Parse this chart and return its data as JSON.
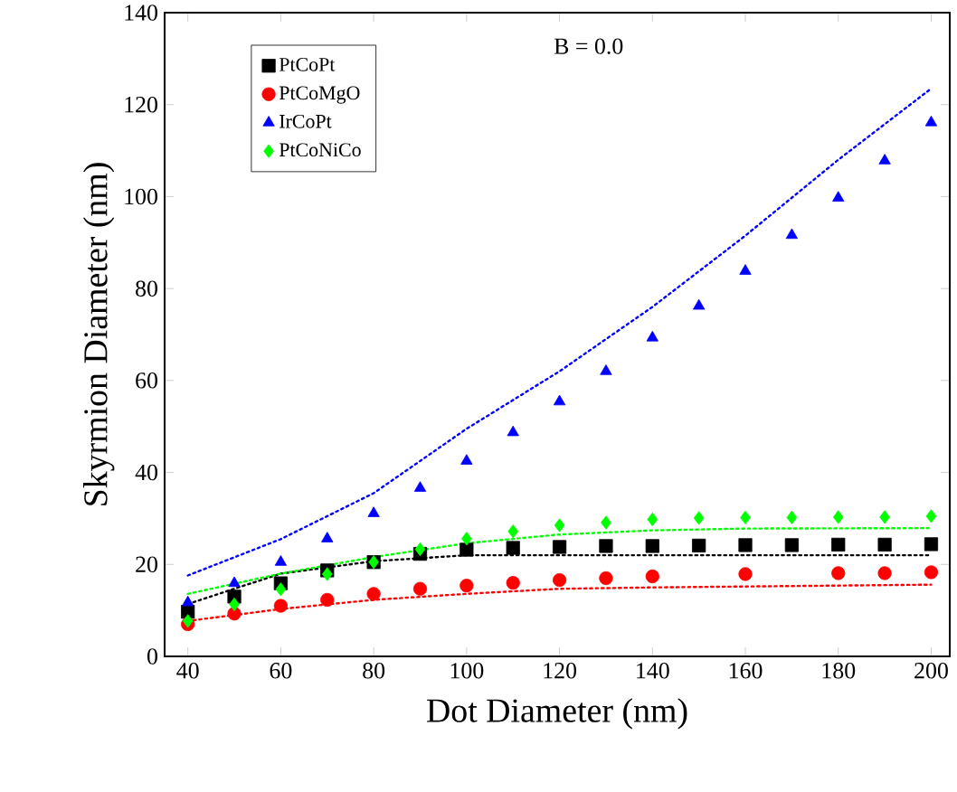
{
  "chart_data": {
    "type": "scatter",
    "xlabel": "Dot Diameter (nm)",
    "ylabel": "Skyrmion Diameter (nm)",
    "annotations": [
      "B = 0.0"
    ],
    "x": [
      40,
      50,
      60,
      70,
      80,
      90,
      100,
      110,
      120,
      130,
      140,
      150,
      160,
      170,
      180,
      190,
      200
    ],
    "xlim": [
      35,
      204
    ],
    "xticks": [
      40,
      60,
      80,
      100,
      120,
      140,
      160,
      180,
      200
    ],
    "ylim": [
      0,
      140
    ],
    "yticks": [
      0,
      20,
      40,
      60,
      80,
      100,
      120,
      140
    ],
    "grid": false,
    "legend": "top left",
    "series": [
      {
        "name": "PtCoPt",
        "color": "#000000",
        "marker": "square",
        "values": [
          9.7,
          13,
          15.9,
          18.7,
          20.5,
          22.3,
          23.2,
          23.6,
          23.8,
          24,
          24,
          24.1,
          24.2,
          24.2,
          24.3,
          24.3,
          24.4
        ]
      },
      {
        "name": "PtCoMgO",
        "color": "#ff0000",
        "marker": "circle",
        "values": [
          7,
          9.3,
          11,
          12.3,
          13.6,
          14.7,
          15.4,
          16,
          16.6,
          17,
          17.4,
          null,
          17.9,
          null,
          18.1,
          18.1,
          18.3
        ]
      },
      {
        "name": "IrCoPt",
        "color": "#0000ff",
        "marker": "triangle",
        "values": [
          11.7,
          15.9,
          20.5,
          25.6,
          31.1,
          36.6,
          42.5,
          48.7,
          55.4,
          62,
          69.3,
          76.2,
          83.8,
          91.6,
          99.7,
          107.8,
          116.1
        ]
      },
      {
        "name": "PtCoNiCo",
        "color": "#00ff00",
        "marker": "diamond",
        "values": [
          7.7,
          11.3,
          14.6,
          17.9,
          20.5,
          23.3,
          25.6,
          27.2,
          28.5,
          29.1,
          29.8,
          30.1,
          30.2,
          30.2,
          30.3,
          30.3,
          30.5
        ]
      },
      {
        "type": "line",
        "line_style": "dotted",
        "marker": "none",
        "color": "#000000",
        "x": [
          40,
          60,
          80,
          100,
          120,
          160,
          200
        ],
        "values": [
          11.4,
          18,
          20.7,
          22,
          22,
          22,
          22
        ]
      },
      {
        "type": "line",
        "line_style": "dotted",
        "marker": "none",
        "color": "#ff0000",
        "x": [
          40,
          60,
          80,
          100,
          120,
          140,
          160,
          200
        ],
        "values": [
          7.7,
          10.3,
          12.3,
          13.6,
          14.7,
          15,
          15.2,
          15.6
        ]
      },
      {
        "type": "line",
        "line_style": "dotted",
        "marker": "none",
        "color": "#0000ff",
        "x": [
          40,
          60,
          80,
          100,
          120,
          140,
          160,
          180,
          200
        ],
        "values": [
          17.6,
          25.5,
          35.5,
          49.5,
          62,
          76,
          91.5,
          108,
          123.5
        ]
      },
      {
        "type": "line",
        "line_style": "dotted",
        "marker": "none",
        "color": "#00ff00",
        "x": [
          40,
          60,
          80,
          100,
          120,
          140,
          160,
          200
        ],
        "values": [
          13.6,
          18,
          21.6,
          24.6,
          26.5,
          27.4,
          27.8,
          27.9
        ]
      }
    ]
  }
}
